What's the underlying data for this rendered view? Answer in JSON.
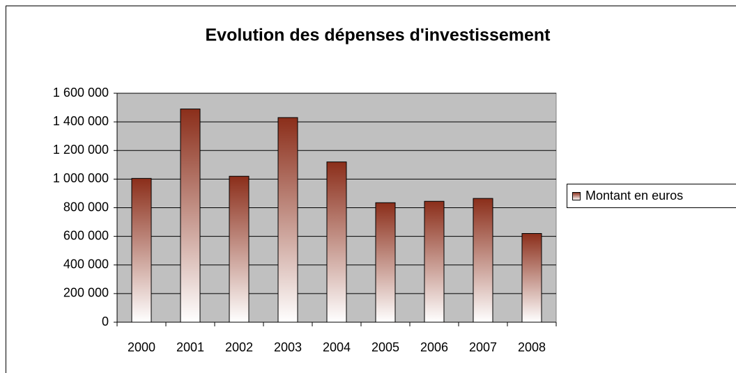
{
  "chart_data": {
    "type": "bar",
    "title": "Evolution des dépenses d'investissement",
    "categories": [
      "2000",
      "2001",
      "2002",
      "2003",
      "2004",
      "2005",
      "2006",
      "2007",
      "2008"
    ],
    "series": [
      {
        "name": "Montant en euros",
        "color": "#8b2e1a",
        "values": [
          1005000,
          1490000,
          1020000,
          1430000,
          1120000,
          835000,
          845000,
          865000,
          620000
        ]
      }
    ],
    "ylim": [
      0,
      1600000
    ],
    "yticks": [
      0,
      {
        "value": 200000,
        "label": "200 000"
      },
      {
        "value": 400000,
        "label": "400 000"
      },
      {
        "value": 600000,
        "label": "600 000"
      },
      {
        "value": 800000,
        "label": "800 000"
      },
      {
        "value": 1000000,
        "label": "1 000 000"
      },
      {
        "value": 1200000,
        "label": "1 200 000"
      },
      {
        "value": 1400000,
        "label": "1 400 000"
      },
      {
        "value": 1600000,
        "label": "1 600 000"
      }
    ],
    "grid": true,
    "legend": "right"
  }
}
